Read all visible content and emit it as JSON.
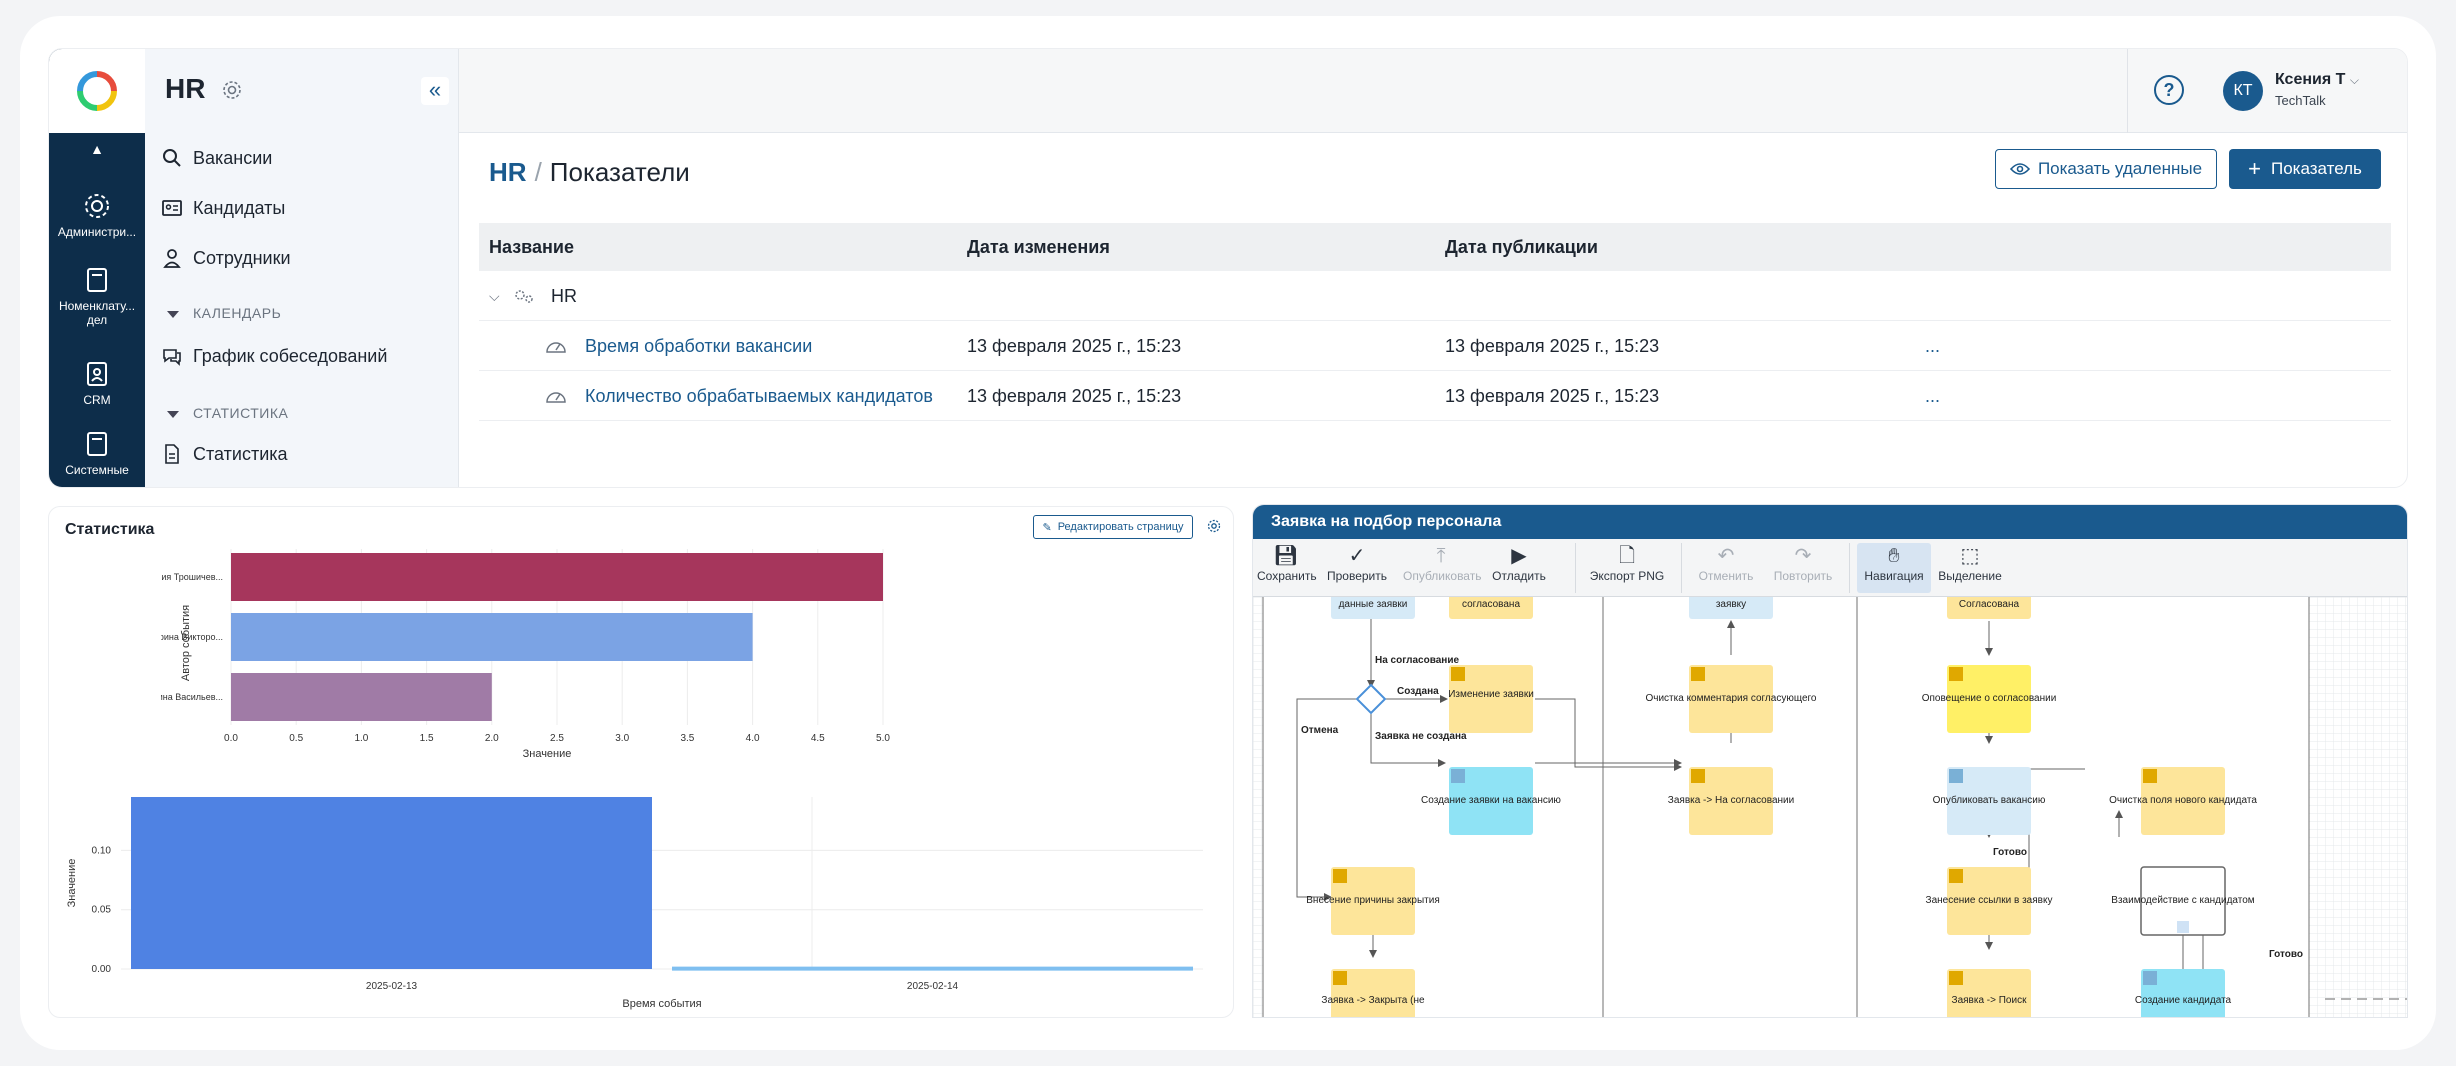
{
  "rail": {
    "items": [
      {
        "label": "Администри...",
        "icon": "gear-icon"
      },
      {
        "label": "Номенклату... дел",
        "icon": "book-icon"
      },
      {
        "label": "CRM",
        "icon": "contact-icon"
      },
      {
        "label": "Системные",
        "icon": "book-icon"
      }
    ]
  },
  "panel": {
    "title": "HR",
    "items": [
      {
        "label": "Вакансии",
        "icon": "search-icon"
      },
      {
        "label": "Кандидаты",
        "icon": "id-card-icon"
      },
      {
        "label": "Сотрудники",
        "icon": "user-icon"
      }
    ],
    "section_calendar": "КАЛЕНДАРЬ",
    "calendar_item": "График собеседований",
    "section_stats": "СТАТИСТИКА",
    "stats_item": "Статистика"
  },
  "user": {
    "initials": "КТ",
    "name": "Ксения Т",
    "company": "TechTalk",
    "help": "?"
  },
  "breadcrumb": {
    "root": "HR",
    "current": "Показатели"
  },
  "buttons": {
    "show_deleted": "Показать удаленные",
    "add_indicator": "Показатель"
  },
  "table": {
    "columns": [
      "Название",
      "Дата изменения",
      "Дата публикации"
    ],
    "group": "HR",
    "rows": [
      {
        "name": "Время обработки вакансии",
        "changed": "13 февраля 2025 г., 15:23",
        "published": "13 февраля 2025 г., 15:23",
        "menu": "..."
      },
      {
        "name": "Количество обрабатываемых кандидатов",
        "changed": "13 февраля 2025 г., 15:23",
        "published": "13 февраля 2025 г., 15:23",
        "menu": "..."
      }
    ]
  },
  "stats": {
    "title": "Статистика",
    "edit_label": "Редактировать страницу"
  },
  "chart_data": [
    {
      "type": "bar",
      "orientation": "horizontal",
      "categories": [
        "Ксения Трошичев...",
        "Катерина Викторо...",
        "Марина Васильев..."
      ],
      "values": [
        5.0,
        4.0,
        2.0
      ],
      "colors": [
        "#a6365c",
        "#7ba3e4",
        "#a07ba6"
      ],
      "xlabel": "Значение",
      "ylabel": "Автор события",
      "xlim": [
        0,
        5
      ],
      "xticks": [
        "0.0",
        "0.5",
        "1.0",
        "1.5",
        "2.0",
        "2.5",
        "3.0",
        "3.5",
        "4.0",
        "4.5",
        "5.0"
      ],
      "grid": true
    },
    {
      "type": "bar",
      "categories": [
        "2025-02-13",
        "2025-02-14"
      ],
      "values": [
        0.145,
        0.002
      ],
      "colors": [
        "#4f82e3",
        "#7fbff0"
      ],
      "xlabel": "Время события",
      "ylabel": "Значение",
      "ylim": [
        0,
        0.145
      ],
      "yticks": [
        "0.00",
        "0.05",
        "0.10"
      ],
      "grid": true
    }
  ],
  "bpmn": {
    "title": "Заявка на подбор персонала",
    "tools": [
      {
        "label": "Сохранить",
        "icon": "save-icon",
        "enabled": true
      },
      {
        "label": "Проверить",
        "icon": "check-icon",
        "enabled": true
      },
      {
        "label": "Опубликовать",
        "icon": "upload-icon",
        "enabled": false
      },
      {
        "label": "Отладить",
        "icon": "play-icon",
        "enabled": true
      },
      {
        "label": "Экспорт PNG",
        "icon": "file-icon",
        "enabled": true
      },
      {
        "label": "Отменить",
        "icon": "undo-icon",
        "enabled": false
      },
      {
        "label": "Повторить",
        "icon": "redo-icon",
        "enabled": false
      },
      {
        "label": "Навигация",
        "icon": "hand-icon",
        "enabled": true
      },
      {
        "label": "Выделение",
        "icon": "select-icon",
        "enabled": true
      }
    ],
    "nodes": {
      "n1": "данные заявки",
      "n2": "согласована",
      "n3": "заявку",
      "n4": "Согласована",
      "n5": "Изменение заявки",
      "n6": "Очистка комментария согласующего",
      "n7": "Оповещение о согласовании",
      "n8": "Создание заявки на вакансию",
      "n9": "Заявка -> На согласовании",
      "n10": "Опубликовать вакансию",
      "n11": "Очистка поля нового кандидата",
      "n12": "Внесение причины закрытия",
      "n13": "Занесение ссылки в заявку",
      "n14": "Взаимодействие с кандидатом",
      "n15": "Заявка -> Закрыта (не",
      "n16": "Заявка -> Поиск",
      "n17": "Создание кандидата"
    },
    "edges": {
      "e1": "На согласование",
      "e2": "Создана",
      "e3": "Заявка не создана",
      "e4": "Отмена",
      "e5": "Готово",
      "e6": "Готово"
    }
  }
}
